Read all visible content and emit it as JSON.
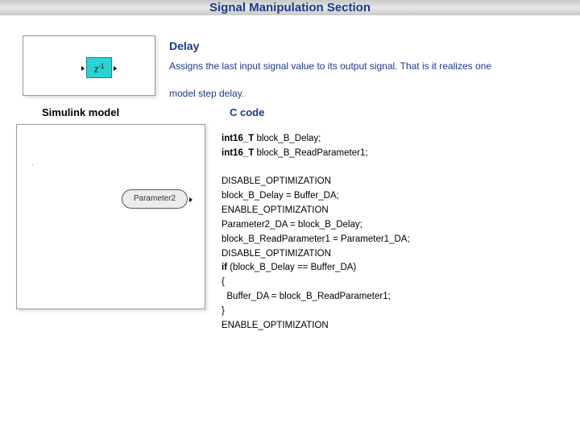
{
  "header": {
    "title": "Signal Manipulation Section"
  },
  "block": {
    "title": "Delay",
    "description1": "Assigns the last input signal value to its output signal. That is it realizes one",
    "description2": "model step delay."
  },
  "diagrams": {
    "delay_label": "z",
    "delay_sup": "-1",
    "param_label": "Parameter2",
    "diagram_border": "#999999",
    "delay_fill": "#2bd4d4",
    "delay_border": "#0a8a8a"
  },
  "labels": {
    "simulink": "Simulink model",
    "ccode": "C code"
  },
  "code": {
    "lines": [
      {
        "kw": "int16_T",
        "rest": " block_B_Delay;"
      },
      {
        "kw": "int16_T",
        "rest": " block_B_ReadParameter1;"
      },
      {
        "kw": "",
        "rest": ""
      },
      {
        "kw": "",
        "rest": "DISABLE_OPTIMIZATION"
      },
      {
        "kw": "",
        "rest": "block_B_Delay = Buffer_DA;"
      },
      {
        "kw": "",
        "rest": "ENABLE_OPTIMIZATION"
      },
      {
        "kw": "",
        "rest": "Parameter2_DA = block_B_Delay;"
      },
      {
        "kw": "",
        "rest": "block_B_ReadParameter1 = Parameter1_DA;"
      },
      {
        "kw": "",
        "rest": "DISABLE_OPTIMIZATION"
      },
      {
        "kw": "if",
        "rest": " (block_B_Delay == Buffer_DA)"
      },
      {
        "kw": "",
        "rest": "{"
      },
      {
        "kw": "",
        "rest": "  Buffer_DA = block_B_ReadParameter1;"
      },
      {
        "kw": "",
        "rest": "}"
      },
      {
        "kw": "",
        "rest": "ENABLE_OPTIMIZATION"
      }
    ]
  },
  "style": {
    "title_color": "#1a3a8a",
    "text_color": "#000000",
    "font_size_title": 15,
    "font_size_body": 12,
    "font_size_code": 11.5
  }
}
